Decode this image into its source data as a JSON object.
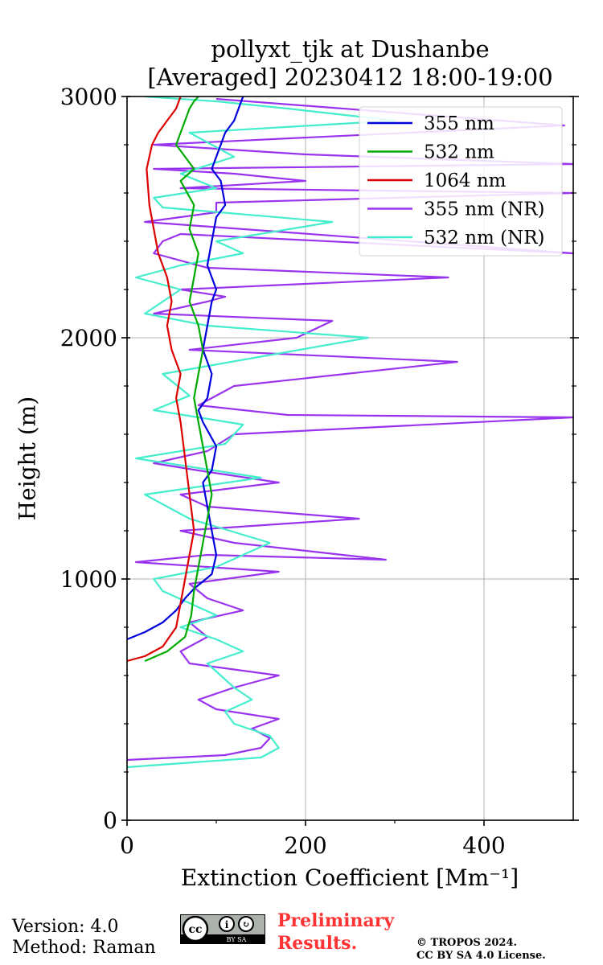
{
  "chart_data": {
    "type": "line",
    "title": "pollyxt_tjk at Dushanbe",
    "subtitle": "[Averaged] 20230412 18:00-19:00",
    "xlabel": "Extinction Coefficient [Mm⁻¹]",
    "ylabel": "Height (m)",
    "xlim": [
      0,
      500
    ],
    "ylim": [
      0,
      3000
    ],
    "xticks": [
      0,
      200,
      400
    ],
    "yticks": [
      0,
      1000,
      2000,
      3000
    ],
    "grid": true,
    "legend_position": "top-right",
    "series": [
      {
        "name": "355 nm",
        "color": "#0000dd",
        "x": [
          0,
          20,
          40,
          55,
          65,
          75,
          85,
          95,
          100,
          95,
          90,
          85,
          95,
          100,
          85,
          80,
          90,
          95,
          85,
          90,
          95,
          100,
          90,
          95,
          100,
          110,
          105,
          95,
          100,
          110,
          120,
          130
        ],
        "y": [
          750,
          780,
          820,
          870,
          920,
          960,
          990,
          1020,
          1100,
          1200,
          1300,
          1400,
          1450,
          1550,
          1650,
          1700,
          1750,
          1850,
          1950,
          2050,
          2150,
          2200,
          2300,
          2400,
          2500,
          2550,
          2650,
          2700,
          2750,
          2850,
          2900,
          3000
        ]
      },
      {
        "name": "532 nm",
        "color": "#00aa00",
        "x": [
          20,
          45,
          65,
          72,
          75,
          80,
          85,
          90,
          95,
          90,
          85,
          80,
          75,
          80,
          85,
          80,
          70,
          75,
          80,
          70,
          75,
          60,
          75,
          65,
          55,
          60,
          65,
          70,
          75,
          80
        ],
        "y": [
          660,
          700,
          760,
          850,
          950,
          1050,
          1150,
          1250,
          1350,
          1450,
          1550,
          1650,
          1750,
          1850,
          1950,
          2050,
          2150,
          2250,
          2350,
          2450,
          2550,
          2650,
          2700,
          2750,
          2800,
          2850,
          2900,
          2950,
          2980,
          3000
        ]
      },
      {
        "name": "1064 nm",
        "color": "#dd0000",
        "x": [
          0,
          20,
          40,
          55,
          60,
          65,
          70,
          75,
          70,
          65,
          60,
          55,
          60,
          50,
          45,
          50,
          45,
          35,
          30,
          25,
          22,
          28,
          35,
          45,
          55,
          60
        ],
        "y": [
          660,
          680,
          720,
          800,
          900,
          1000,
          1100,
          1200,
          1350,
          1500,
          1650,
          1750,
          1850,
          1950,
          2050,
          2150,
          2250,
          2350,
          2450,
          2550,
          2700,
          2800,
          2850,
          2900,
          2950,
          3000
        ]
      },
      {
        "name": "355 nm (NR)",
        "color": "#9933ee",
        "x": [
          0,
          110,
          150,
          160,
          140,
          170,
          100,
          80,
          120,
          170,
          70,
          60,
          90,
          70,
          130,
          90,
          70,
          170,
          10,
          90,
          290,
          120,
          60,
          260,
          90,
          60,
          170,
          80,
          30,
          90,
          120,
          500,
          180,
          80,
          120,
          370,
          70,
          190,
          230,
          30,
          90,
          110,
          60,
          360,
          90,
          30,
          40,
          60,
          500,
          20,
          100,
          100,
          500,
          60,
          200,
          120,
          30,
          500,
          200,
          30,
          490,
          100
        ],
        "y": [
          250,
          270,
          300,
          340,
          380,
          420,
          460,
          500,
          550,
          600,
          650,
          700,
          760,
          820,
          870,
          920,
          980,
          1030,
          1070,
          1100,
          1080,
          1150,
          1200,
          1250,
          1300,
          1350,
          1400,
          1450,
          1480,
          1530,
          1600,
          1670,
          1680,
          1720,
          1800,
          1900,
          1950,
          2000,
          2070,
          2100,
          2150,
          2170,
          2200,
          2250,
          2290,
          2350,
          2400,
          2430,
          2350,
          2480,
          2520,
          2560,
          2600,
          2620,
          2650,
          2680,
          2700,
          2720,
          2760,
          2800,
          2880,
          2990
        ]
      },
      {
        "name": "532 nm (NR)",
        "color": "#44eecc",
        "x": [
          0,
          150,
          170,
          160,
          120,
          110,
          140,
          120,
          90,
          130,
          100,
          60,
          100,
          70,
          40,
          30,
          100,
          160,
          70,
          20,
          150,
          10,
          110,
          130,
          30,
          70,
          40,
          270,
          90,
          20,
          60,
          10,
          60,
          130,
          100,
          230,
          40,
          30,
          100,
          60,
          120,
          70,
          300,
          180,
          100,
          20
        ],
        "y": [
          220,
          260,
          300,
          350,
          400,
          450,
          500,
          550,
          650,
          700,
          750,
          800,
          850,
          900,
          950,
          1000,
          1050,
          1150,
          1250,
          1350,
          1420,
          1500,
          1560,
          1640,
          1700,
          1760,
          1850,
          2000,
          2050,
          2100,
          2200,
          2250,
          2300,
          2350,
          2400,
          2480,
          2540,
          2580,
          2620,
          2680,
          2750,
          2850,
          2900,
          2950,
          2980,
          3000
        ]
      }
    ]
  },
  "footer": {
    "version": "Version: 4.0",
    "method": "Method: Raman",
    "preliminary_line1": "Preliminary",
    "preliminary_line2": "Results.",
    "copyright_line1": "© TROPOS 2024.",
    "copyright_line2": "CC BY SA 4.0 License.",
    "cc_badge_text": "BY  SA"
  }
}
